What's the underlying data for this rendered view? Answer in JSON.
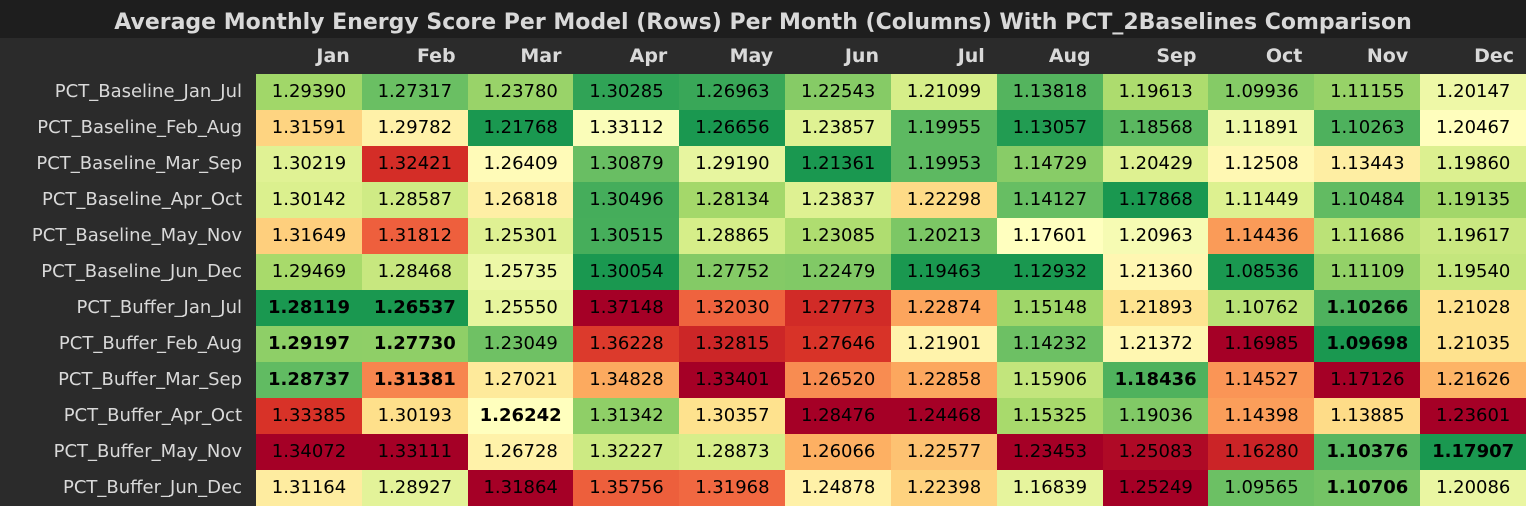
{
  "chart_data": {
    "type": "heatmap",
    "title": "Average Monthly Energy Score Per Model (Rows) Per Month (Columns) With PCT_2Baselines Comparison",
    "columns": [
      "Jan",
      "Feb",
      "Mar",
      "Apr",
      "May",
      "Jun",
      "Jul",
      "Aug",
      "Sep",
      "Oct",
      "Nov",
      "Dec"
    ],
    "rows": [
      {
        "label": "PCT_Baseline_Jan_Jul",
        "values": [
          "1.29390",
          "1.27317",
          "1.23780",
          "1.30285",
          "1.26963",
          "1.22543",
          "1.21099",
          "1.13818",
          "1.19613",
          "1.09936",
          "1.11155",
          "1.20147"
        ],
        "bold": [
          false,
          false,
          false,
          false,
          false,
          false,
          false,
          false,
          false,
          false,
          false,
          false
        ]
      },
      {
        "label": "PCT_Baseline_Feb_Aug",
        "values": [
          "1.31591",
          "1.29782",
          "1.21768",
          "1.33112",
          "1.26656",
          "1.23857",
          "1.19955",
          "1.13057",
          "1.18568",
          "1.11891",
          "1.10263",
          "1.20467"
        ],
        "bold": [
          false,
          false,
          false,
          false,
          false,
          false,
          false,
          false,
          false,
          false,
          false,
          false
        ]
      },
      {
        "label": "PCT_Baseline_Mar_Sep",
        "values": [
          "1.30219",
          "1.32421",
          "1.26409",
          "1.30879",
          "1.29190",
          "1.21361",
          "1.19953",
          "1.14729",
          "1.20429",
          "1.12508",
          "1.13443",
          "1.19860"
        ],
        "bold": [
          false,
          false,
          false,
          false,
          false,
          false,
          false,
          false,
          false,
          false,
          false,
          false
        ]
      },
      {
        "label": "PCT_Baseline_Apr_Oct",
        "values": [
          "1.30142",
          "1.28587",
          "1.26818",
          "1.30496",
          "1.28134",
          "1.23837",
          "1.22298",
          "1.14127",
          "1.17868",
          "1.11449",
          "1.10484",
          "1.19135"
        ],
        "bold": [
          false,
          false,
          false,
          false,
          false,
          false,
          false,
          false,
          false,
          false,
          false,
          false
        ]
      },
      {
        "label": "PCT_Baseline_May_Nov",
        "values": [
          "1.31649",
          "1.31812",
          "1.25301",
          "1.30515",
          "1.28865",
          "1.23085",
          "1.20213",
          "1.17601",
          "1.20963",
          "1.14436",
          "1.11686",
          "1.19617"
        ],
        "bold": [
          false,
          false,
          false,
          false,
          false,
          false,
          false,
          false,
          false,
          false,
          false,
          false
        ]
      },
      {
        "label": "PCT_Baseline_Jun_Dec",
        "values": [
          "1.29469",
          "1.28468",
          "1.25735",
          "1.30054",
          "1.27752",
          "1.22479",
          "1.19463",
          "1.12932",
          "1.21360",
          "1.08536",
          "1.11109",
          "1.19540"
        ],
        "bold": [
          false,
          false,
          false,
          false,
          false,
          false,
          false,
          false,
          false,
          false,
          false,
          false
        ]
      },
      {
        "label": "PCT_Buffer_Jan_Jul",
        "values": [
          "1.28119",
          "1.26537",
          "1.25550",
          "1.37148",
          "1.32030",
          "1.27773",
          "1.22874",
          "1.15148",
          "1.21893",
          "1.10762",
          "1.10266",
          "1.21028"
        ],
        "bold": [
          true,
          true,
          false,
          false,
          false,
          false,
          false,
          false,
          false,
          false,
          true,
          false
        ]
      },
      {
        "label": "PCT_Buffer_Feb_Aug",
        "values": [
          "1.29197",
          "1.27730",
          "1.23049",
          "1.36228",
          "1.32815",
          "1.27646",
          "1.21901",
          "1.14232",
          "1.21372",
          "1.16985",
          "1.09698",
          "1.21035"
        ],
        "bold": [
          true,
          true,
          false,
          false,
          false,
          false,
          false,
          false,
          false,
          false,
          true,
          false
        ]
      },
      {
        "label": "PCT_Buffer_Mar_Sep",
        "values": [
          "1.28737",
          "1.31381",
          "1.27021",
          "1.34828",
          "1.33401",
          "1.26520",
          "1.22858",
          "1.15906",
          "1.18436",
          "1.14527",
          "1.17126",
          "1.21626"
        ],
        "bold": [
          true,
          true,
          false,
          false,
          false,
          false,
          false,
          false,
          true,
          false,
          false,
          false
        ]
      },
      {
        "label": "PCT_Buffer_Apr_Oct",
        "values": [
          "1.33385",
          "1.30193",
          "1.26242",
          "1.31342",
          "1.30357",
          "1.28476",
          "1.24468",
          "1.15325",
          "1.19036",
          "1.14398",
          "1.13885",
          "1.23601"
        ],
        "bold": [
          false,
          false,
          true,
          false,
          false,
          false,
          false,
          false,
          false,
          false,
          false,
          false
        ]
      },
      {
        "label": "PCT_Buffer_May_Nov",
        "values": [
          "1.34072",
          "1.33111",
          "1.26728",
          "1.32227",
          "1.28873",
          "1.26066",
          "1.22577",
          "1.23453",
          "1.25083",
          "1.16280",
          "1.10376",
          "1.17907"
        ],
        "bold": [
          false,
          false,
          false,
          false,
          false,
          false,
          false,
          false,
          false,
          false,
          true,
          true
        ]
      },
      {
        "label": "PCT_Buffer_Jun_Dec",
        "values": [
          "1.31164",
          "1.28927",
          "1.31864",
          "1.35756",
          "1.31968",
          "1.24878",
          "1.22398",
          "1.16839",
          "1.25249",
          "1.09565",
          "1.10706",
          "1.20086"
        ],
        "bold": [
          false,
          false,
          false,
          false,
          false,
          false,
          false,
          false,
          false,
          false,
          true,
          false
        ]
      }
    ],
    "colormap": [
      "#a50026",
      "#d73027",
      "#f46d43",
      "#fdae61",
      "#fee08b",
      "#ffffbf",
      "#d9ef8b",
      "#a6d96a",
      "#66bd63",
      "#1a9850"
    ],
    "color_scale": "per-column, high = red, low = green"
  }
}
